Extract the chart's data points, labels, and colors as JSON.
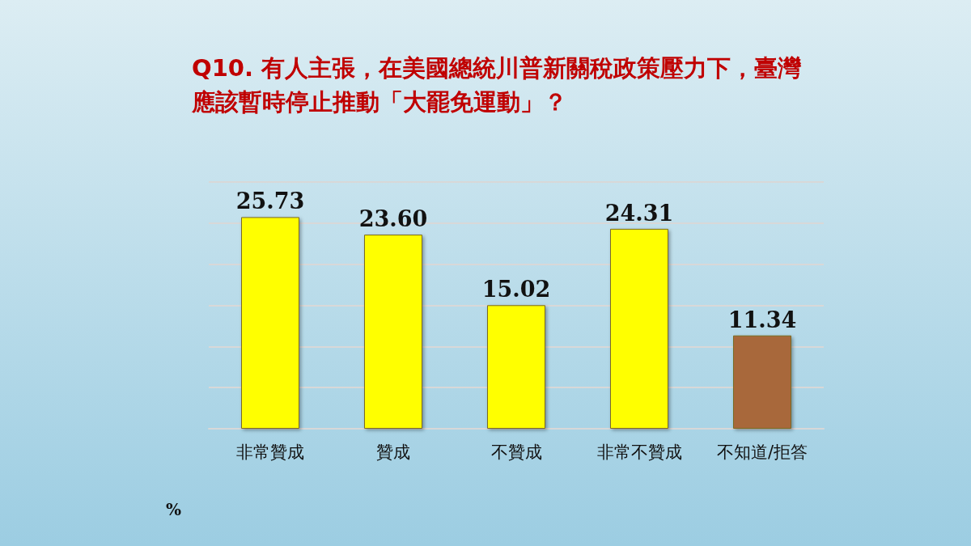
{
  "chart_data": {
    "type": "bar",
    "title": "Q10. 有人主張，在美國總統川普新關稅政策壓力下，臺灣應該暫時停止推動「大罷免運動」？",
    "categories": [
      "非常贊成",
      "贊成",
      "不贊成",
      "非常不贊成",
      "不知道/拒答"
    ],
    "values": [
      25.73,
      23.6,
      15.02,
      24.31,
      11.34
    ],
    "value_labels": [
      "25.73",
      "23.60",
      "15.02",
      "24.31",
      "11.34"
    ],
    "colors": [
      "#ffff00",
      "#ffff00",
      "#ffff00",
      "#ffff00",
      "#a8683a"
    ],
    "ylim": [
      0,
      30
    ],
    "yticks": [
      {
        "value": 0,
        "label": null
      },
      {
        "value": 5,
        "label": null
      },
      {
        "value": 10,
        "label": null
      },
      {
        "value": 15,
        "label": null
      },
      {
        "value": 20,
        "label": null
      },
      {
        "value": 25,
        "label": null
      },
      {
        "value": 30,
        "label": null
      }
    ],
    "tick_labels": "x",
    "grid": "y",
    "annotations": [
      "%"
    ]
  }
}
